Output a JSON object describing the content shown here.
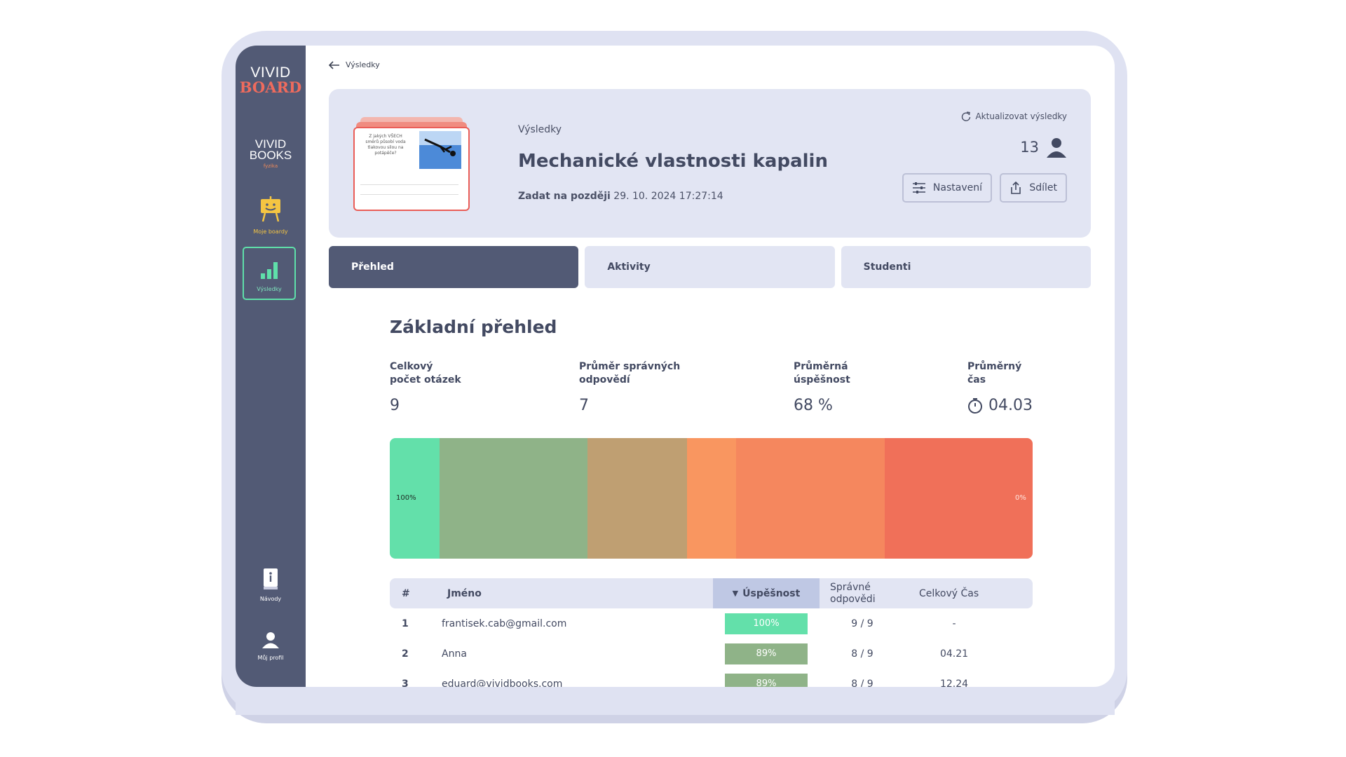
{
  "sidebar": {
    "logo_board": [
      "VIVID",
      "BOARD"
    ],
    "logo_books": [
      "VIVID",
      "BOOKS",
      "fyzika"
    ],
    "items": [
      {
        "label": "Moje boardy",
        "icon": "easel-smiley-icon"
      },
      {
        "label": "Výsledky",
        "icon": "bar-chart-icon",
        "active": true
      },
      {
        "label": "Návody",
        "icon": "info-book-icon"
      },
      {
        "label": "Můj profil",
        "icon": "user-icon"
      }
    ]
  },
  "breadcrumb": {
    "back_label": "Výsledky"
  },
  "header": {
    "kicker": "Výsledky",
    "title": "Mechanické vlastnosti kapalin",
    "subtitle_label": "Zadat na později",
    "subtitle_date": "29. 10. 2024 17:27:14",
    "refresh_label": "Aktualizovat výsledky",
    "student_count": "13",
    "settings_label": "Nastavení",
    "share_label": "Sdílet",
    "thumb_text": "Z jakých VŠECH směrů působí voda tlakovou silou na potápěče?"
  },
  "tabs": [
    {
      "label": "Přehled",
      "active": true
    },
    {
      "label": "Aktivity",
      "active": false
    },
    {
      "label": "Studenti",
      "active": false
    }
  ],
  "overview": {
    "title": "Základní přehled",
    "stats": [
      {
        "label": "Celkový počet otázek",
        "value": "9"
      },
      {
        "label": "Průměr správných odpovědí",
        "value": "7"
      },
      {
        "label": "Průměrná úspěšnost",
        "value": "68 %"
      },
      {
        "label": "Průměrný čas",
        "value": "04.03"
      }
    ],
    "bar_left_label": "100%",
    "bar_right_label": "0%",
    "bar_segments": [
      {
        "share": 0.077,
        "color": "#63e0aa"
      },
      {
        "share": 0.231,
        "color": "#8fb388"
      },
      {
        "share": 0.154,
        "color": "#bf9f72"
      },
      {
        "share": 0.077,
        "color": "#f99660"
      },
      {
        "share": 0.231,
        "color": "#f5875e"
      },
      {
        "share": 0.23,
        "color": "#f07059"
      }
    ]
  },
  "table": {
    "headers": {
      "index": "#",
      "name": "Jméno",
      "success": "Úspěšnost",
      "correct": "Správné odpovědi",
      "time": "Celkový Čas"
    },
    "sort_indicator": "▼",
    "rows": [
      {
        "index": "1",
        "name": "frantisek.cab@gmail.com",
        "success": "100%",
        "color": "#63e0aa",
        "correct": "9 / 9",
        "time": "-"
      },
      {
        "index": "2",
        "name": "Anna",
        "success": "89%",
        "color": "#8fb388",
        "correct": "8 / 9",
        "time": "04.21"
      },
      {
        "index": "3",
        "name": "eduard@vividbooks.com",
        "success": "89%",
        "color": "#8fb388",
        "correct": "8 / 9",
        "time": "12.24"
      }
    ]
  }
}
